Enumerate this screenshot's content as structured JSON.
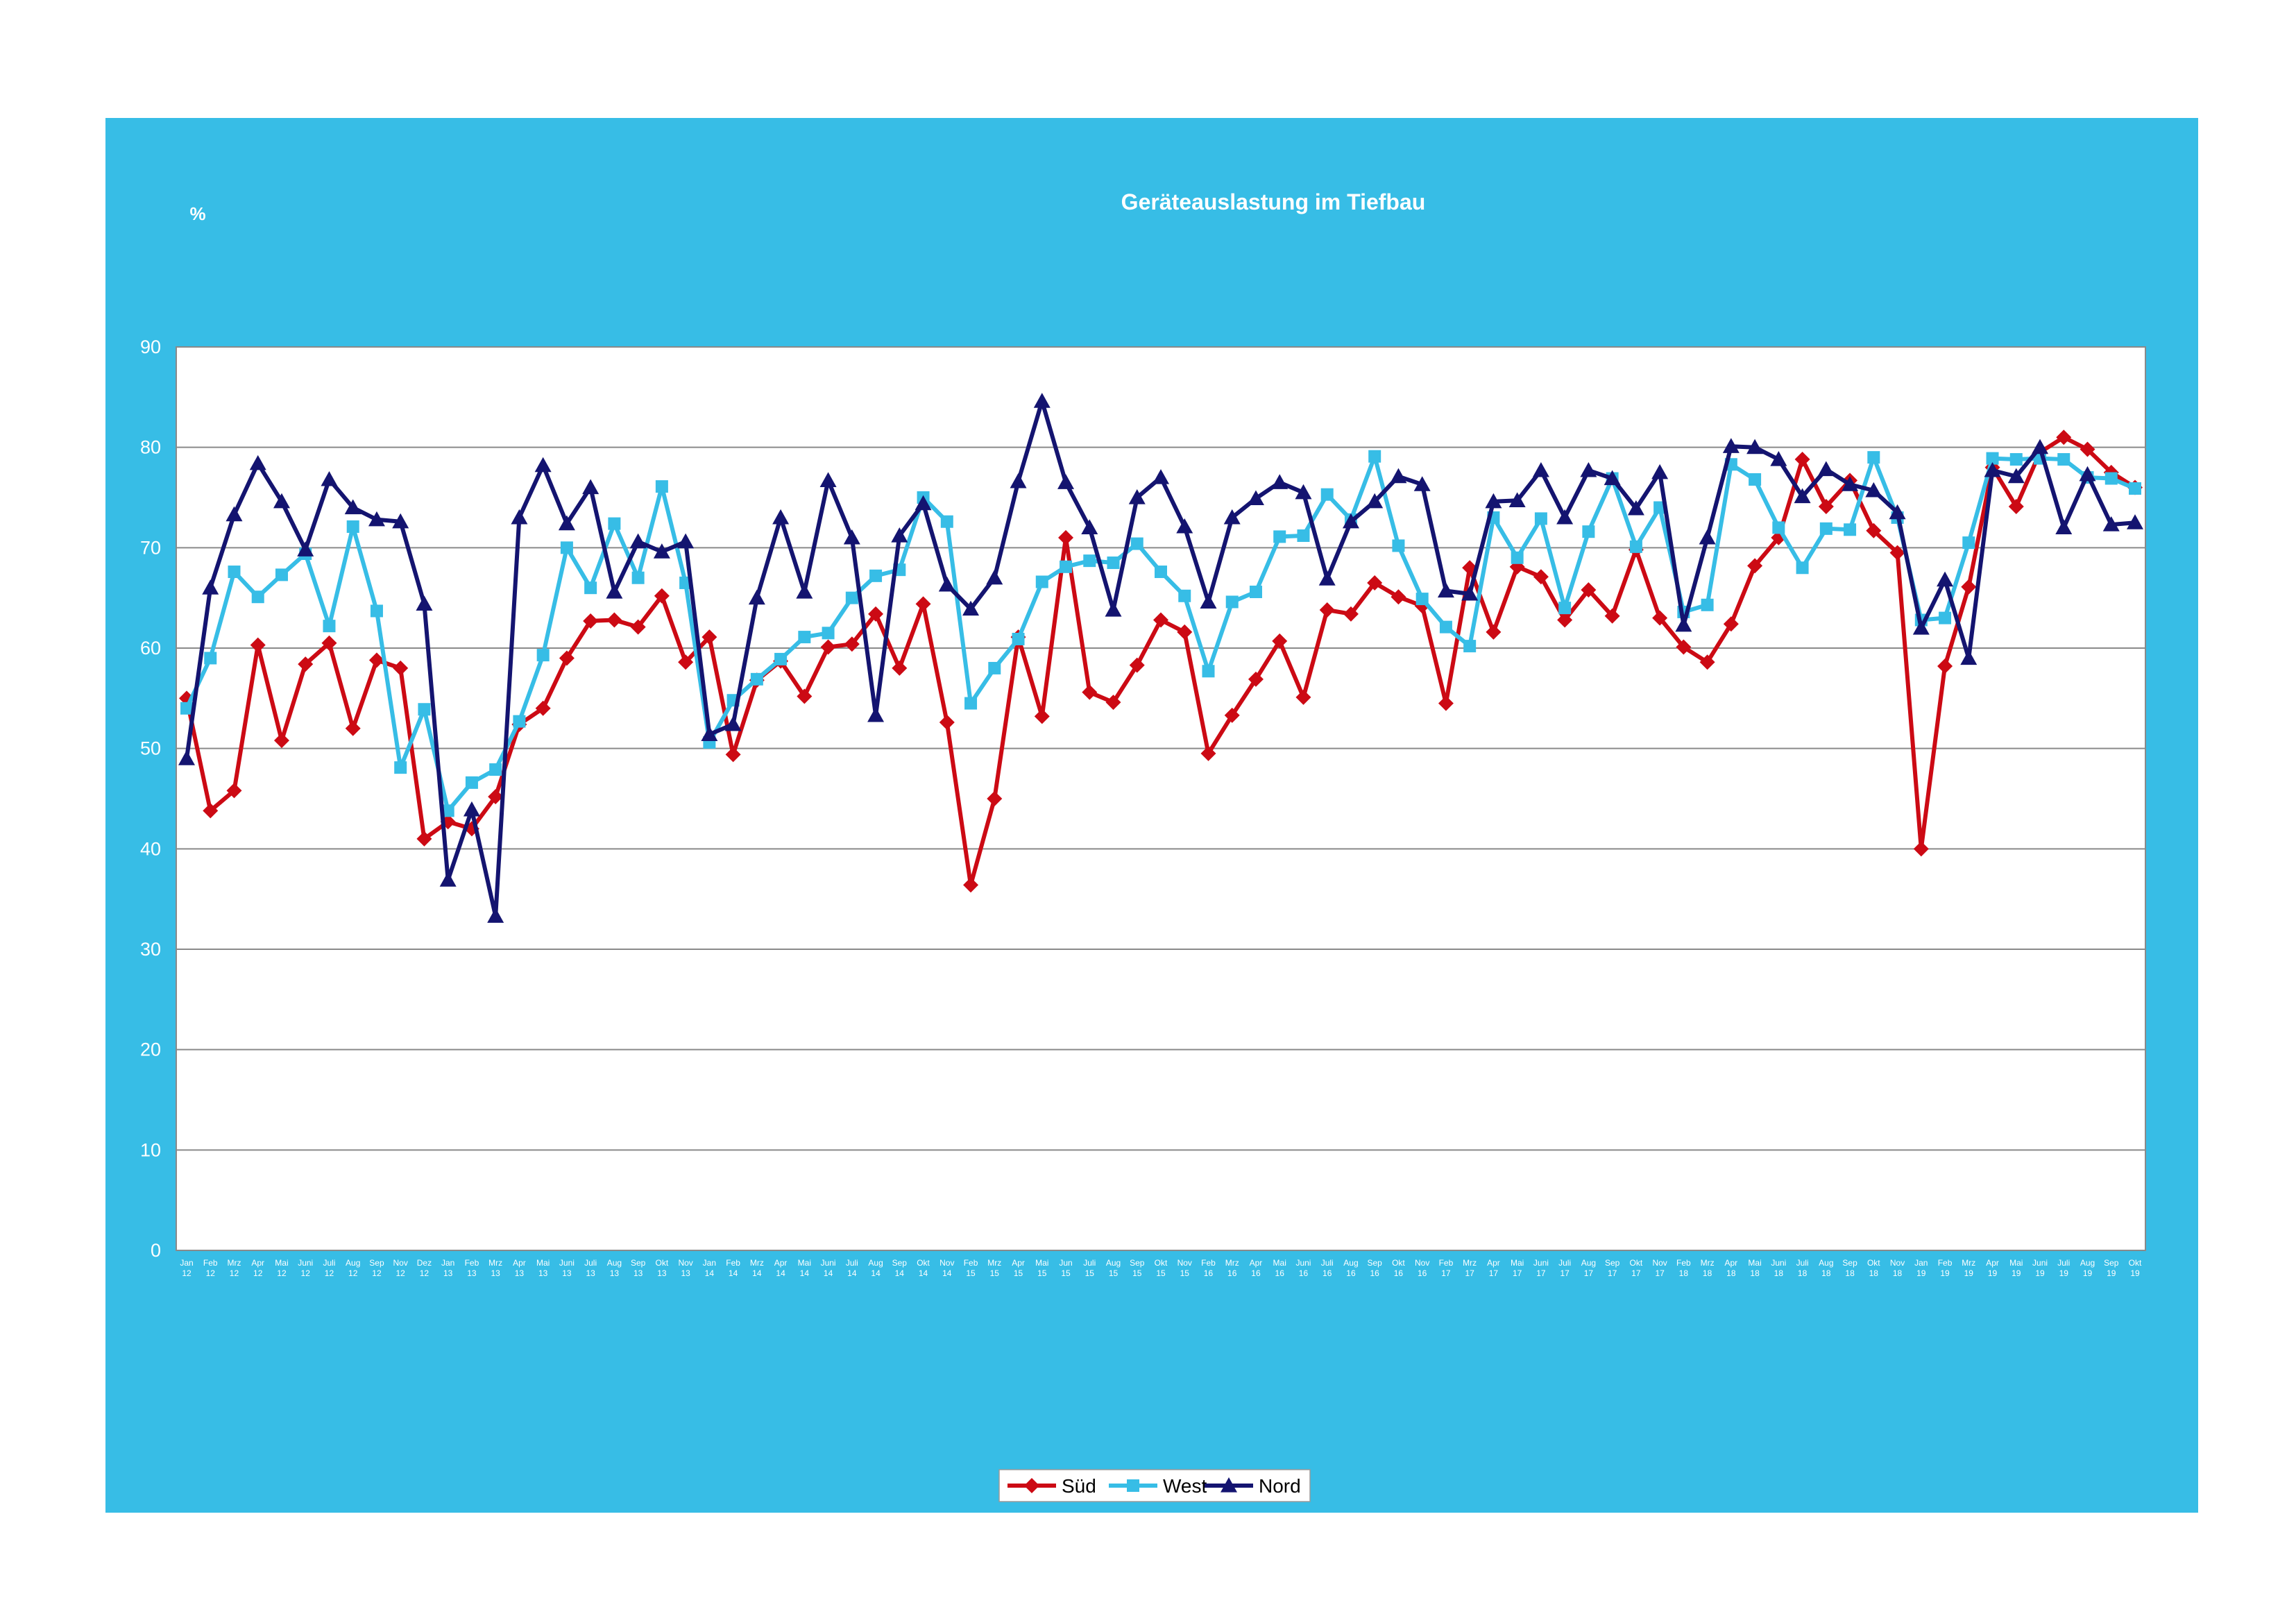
{
  "chart_data": {
    "type": "line",
    "title": "Geräteauslastung im Tiefbau",
    "ylabel": "%",
    "xlabel": "",
    "ylim": [
      0,
      90
    ],
    "yticks": [
      0,
      10,
      20,
      30,
      40,
      50,
      60,
      70,
      80,
      90
    ],
    "grid": "horizontal",
    "legend_position": "bottom",
    "categories": [
      {
        "m": "Jan",
        "y": "12"
      },
      {
        "m": "Feb",
        "y": "12"
      },
      {
        "m": "Mrz",
        "y": "12"
      },
      {
        "m": "Apr",
        "y": "12"
      },
      {
        "m": "Mai",
        "y": "12"
      },
      {
        "m": "Juni",
        "y": "12"
      },
      {
        "m": "Juli",
        "y": "12"
      },
      {
        "m": "Aug",
        "y": "12"
      },
      {
        "m": "Sep",
        "y": "12"
      },
      {
        "m": "Nov",
        "y": "12"
      },
      {
        "m": "Dez",
        "y": "12"
      },
      {
        "m": "Jan",
        "y": "13"
      },
      {
        "m": "Feb",
        "y": "13"
      },
      {
        "m": "Mrz",
        "y": "13"
      },
      {
        "m": "Apr",
        "y": "13"
      },
      {
        "m": "Mai",
        "y": "13"
      },
      {
        "m": "Juni",
        "y": "13"
      },
      {
        "m": "Juli",
        "y": "13"
      },
      {
        "m": "Aug",
        "y": "13"
      },
      {
        "m": "Sep",
        "y": "13"
      },
      {
        "m": "Okt",
        "y": "13"
      },
      {
        "m": "Nov",
        "y": "13"
      },
      {
        "m": "Jan",
        "y": "14"
      },
      {
        "m": "Feb",
        "y": "14"
      },
      {
        "m": "Mrz",
        "y": "14"
      },
      {
        "m": "Apr",
        "y": "14"
      },
      {
        "m": "Mai",
        "y": "14"
      },
      {
        "m": "Juni",
        "y": "14"
      },
      {
        "m": "Juli",
        "y": "14"
      },
      {
        "m": "Aug",
        "y": "14"
      },
      {
        "m": "Sep",
        "y": "14"
      },
      {
        "m": "Okt",
        "y": "14"
      },
      {
        "m": "Nov",
        "y": "14"
      },
      {
        "m": "Feb",
        "y": "15"
      },
      {
        "m": "Mrz",
        "y": "15"
      },
      {
        "m": "Apr",
        "y": "15"
      },
      {
        "m": "Mai",
        "y": "15"
      },
      {
        "m": "Jun",
        "y": "15"
      },
      {
        "m": "Juli",
        "y": "15"
      },
      {
        "m": "Aug",
        "y": "15"
      },
      {
        "m": "Sep",
        "y": "15"
      },
      {
        "m": "Okt",
        "y": "15"
      },
      {
        "m": "Nov",
        "y": "15"
      },
      {
        "m": "Feb",
        "y": "16"
      },
      {
        "m": "Mrz",
        "y": "16"
      },
      {
        "m": "Apr",
        "y": "16"
      },
      {
        "m": "Mai",
        "y": "16"
      },
      {
        "m": "Juni",
        "y": "16"
      },
      {
        "m": "Juli",
        "y": "16"
      },
      {
        "m": "Aug",
        "y": "16"
      },
      {
        "m": "Sep",
        "y": "16"
      },
      {
        "m": "Okt",
        "y": "16"
      },
      {
        "m": "Nov",
        "y": "16"
      },
      {
        "m": "Feb",
        "y": "17"
      },
      {
        "m": "Mrz",
        "y": "17"
      },
      {
        "m": "Apr",
        "y": "17"
      },
      {
        "m": "Mai",
        "y": "17"
      },
      {
        "m": "Juni",
        "y": "17"
      },
      {
        "m": "Juli",
        "y": "17"
      },
      {
        "m": "Aug",
        "y": "17"
      },
      {
        "m": "Sep",
        "y": "17"
      },
      {
        "m": "Okt",
        "y": "17"
      },
      {
        "m": "Nov",
        "y": "17"
      },
      {
        "m": "Feb",
        "y": "18"
      },
      {
        "m": "Mrz",
        "y": "18"
      },
      {
        "m": "Apr",
        "y": "18"
      },
      {
        "m": "Mai",
        "y": "18"
      },
      {
        "m": "Juni",
        "y": "18"
      },
      {
        "m": "Juli",
        "y": "18"
      },
      {
        "m": "Aug",
        "y": "18"
      },
      {
        "m": "Sep",
        "y": "18"
      },
      {
        "m": "Okt",
        "y": "18"
      },
      {
        "m": "Nov",
        "y": "18"
      },
      {
        "m": "Jan",
        "y": "19"
      },
      {
        "m": "Feb",
        "y": "19"
      },
      {
        "m": "Mrz",
        "y": "19"
      },
      {
        "m": "Apr",
        "y": "19"
      },
      {
        "m": "Mai",
        "y": "19"
      },
      {
        "m": "Juni",
        "y": "19"
      },
      {
        "m": "Juli",
        "y": "19"
      },
      {
        "m": "Aug",
        "y": "19"
      },
      {
        "m": "Sep",
        "y": "19"
      },
      {
        "m": "Okt",
        "y": "19"
      }
    ],
    "series": [
      {
        "name": "Süd",
        "color": "#cc0a14",
        "marker": "diamond",
        "values": [
          55,
          43.8,
          45.8,
          60.3,
          50.8,
          58.4,
          60.5,
          52,
          58.8,
          58,
          41,
          42.7,
          42,
          45.2,
          52.4,
          54,
          59,
          62.7,
          62.8,
          62.1,
          65.2,
          58.6,
          61.1,
          49.4,
          56.8,
          58.7,
          55.2,
          60.1,
          60.4,
          63.4,
          58,
          64.4,
          52.6,
          36.4,
          45,
          61.1,
          53.2,
          71,
          55.6,
          54.6,
          58.3,
          62.8,
          61.6,
          49.5,
          53.3,
          56.9,
          60.7,
          55.1,
          63.8,
          63.4,
          66.5,
          65.1,
          64.2,
          54.5,
          68,
          61.6,
          68.1,
          67.1,
          62.8,
          65.8,
          63.2,
          69.8,
          63,
          60.1,
          58.6,
          62.4,
          68.2,
          71,
          78.8,
          74.1,
          76.7,
          71.7,
          69.5,
          40,
          58.2,
          66.1,
          78,
          74.1,
          79.5,
          81,
          79.8,
          77.5,
          76
        ]
      },
      {
        "name": "West",
        "color": "#37bde6",
        "marker": "square",
        "values": [
          54,
          59,
          67.6,
          65.1,
          67.3,
          69.4,
          62.2,
          72.1,
          63.7,
          48.1,
          53.9,
          43.8,
          46.6,
          47.9,
          52.7,
          59.3,
          70,
          66,
          72.4,
          67,
          76.1,
          66.5,
          50.6,
          54.8,
          56.9,
          58.9,
          61.1,
          61.5,
          65,
          67.2,
          67.8,
          75,
          72.6,
          54.5,
          58,
          60.9,
          66.6,
          68.1,
          68.7,
          68.5,
          70.4,
          67.6,
          65.2,
          57.7,
          64.6,
          65.6,
          71.1,
          71.2,
          75.3,
          72.8,
          79.1,
          70.2,
          64.9,
          62.1,
          60.2,
          73,
          69,
          72.9,
          64,
          71.6,
          76.9,
          70.1,
          74,
          63.6,
          64.3,
          78.3,
          76.8,
          72,
          68,
          71.9,
          71.8,
          79,
          73,
          62.8,
          63,
          70.5,
          78.9,
          78.8,
          78.9,
          78.8,
          77,
          76.9,
          75.9
        ]
      },
      {
        "name": "Nord",
        "color": "#141470",
        "marker": "triangle",
        "values": [
          49,
          66,
          73.3,
          78.4,
          74.6,
          69.8,
          76.8,
          74,
          72.8,
          72.6,
          64.4,
          36.9,
          43.9,
          33.3,
          73,
          78.2,
          72.4,
          76,
          65.6,
          70.6,
          69.6,
          70.6,
          51.4,
          52.4,
          65,
          73,
          65.6,
          76.7,
          71,
          53.3,
          71.2,
          74.4,
          66.3,
          63.9,
          67,
          76.6,
          84.6,
          76.5,
          72,
          63.8,
          75,
          77,
          72.1,
          64.6,
          73,
          74.9,
          76.5,
          75.5,
          66.9,
          72.6,
          74.6,
          77.1,
          76.3,
          65.7,
          65.4,
          74.6,
          74.7,
          77.7,
          73,
          77.7,
          76.9,
          73.9,
          77.5,
          62.3,
          71,
          80.1,
          80,
          78.8,
          75.1,
          77.8,
          76.3,
          75.7,
          73.5,
          62,
          66.8,
          59,
          77.7,
          77.1,
          80,
          72,
          77.3,
          72.3,
          72.5
        ]
      }
    ]
  }
}
